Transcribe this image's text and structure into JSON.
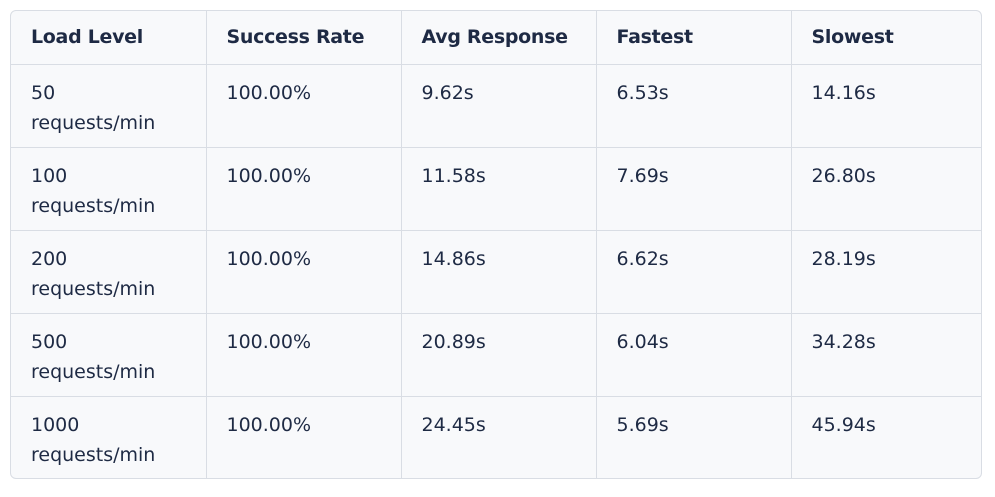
{
  "table": {
    "headers": [
      "Load Level",
      "Success Rate",
      "Avg Response",
      "Fastest",
      "Slowest"
    ],
    "rows": [
      {
        "load": "50 requests/min",
        "success": "100.00%",
        "avg": "9.62s",
        "fastest": "6.53s",
        "slowest": "14.16s"
      },
      {
        "load": "100 requests/min",
        "success": "100.00%",
        "avg": "11.58s",
        "fastest": "7.69s",
        "slowest": "26.80s"
      },
      {
        "load": "200 requests/min",
        "success": "100.00%",
        "avg": "14.86s",
        "fastest": "6.62s",
        "slowest": "28.19s"
      },
      {
        "load": "500 requests/min",
        "success": "100.00%",
        "avg": "20.89s",
        "fastest": "6.04s",
        "slowest": "34.28s"
      },
      {
        "load": "1000 requests/min",
        "success": "100.00%",
        "avg": "24.45s",
        "fastest": "5.69s",
        "slowest": "45.94s"
      }
    ]
  }
}
